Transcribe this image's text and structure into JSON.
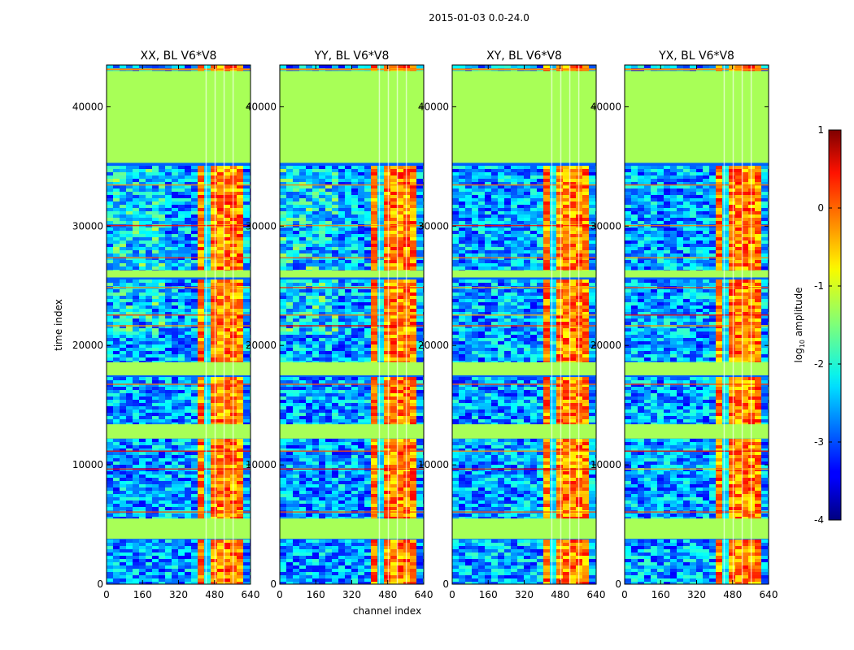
{
  "figure": {
    "suptitle": "2015-01-03 0.0-24.0",
    "xlabel": "channel index",
    "ylabel": "time index"
  },
  "chart_data": {
    "type": "heatmap",
    "suptitle": "2015-01-03 0.0-24.0",
    "xlabel": "channel index",
    "ylabel": "time index",
    "xlim": [
      0,
      640
    ],
    "ylim": [
      0,
      43500
    ],
    "xticks": [
      0,
      160,
      320,
      480,
      640
    ],
    "yticks": [
      0,
      10000,
      20000,
      30000,
      40000
    ],
    "panels": [
      {
        "title": "XX, BL V6*V8",
        "pol": "XX",
        "baseline": "V6*V8",
        "strong_channel_range": [
          400,
          600
        ]
      },
      {
        "title": "YY, BL V6*V8",
        "pol": "YY",
        "baseline": "V6*V8",
        "strong_channel_range": [
          400,
          600
        ]
      },
      {
        "title": "XY, BL V6*V8",
        "pol": "XY",
        "baseline": "V6*V8",
        "strong_channel_range": [
          400,
          600
        ]
      },
      {
        "title": "YX, BL V6*V8",
        "pol": "YX",
        "baseline": "V6*V8",
        "strong_channel_range": [
          400,
          600
        ]
      }
    ],
    "flagged_time_ranges": [
      [
        3800,
        5500
      ],
      [
        12200,
        13400
      ],
      [
        17500,
        18600
      ],
      [
        25700,
        26300
      ],
      [
        35300,
        43000
      ]
    ],
    "colorbar": {
      "label": "log10 amplitude",
      "label_main": "log",
      "label_sub": "10",
      "label_tail": " amplitude",
      "range": [
        -4,
        1
      ],
      "ticks": [
        1,
        0,
        -1,
        -2,
        -3,
        -4
      ],
      "cmap": "jet",
      "flagged_fill_value": -1.3
    }
  }
}
